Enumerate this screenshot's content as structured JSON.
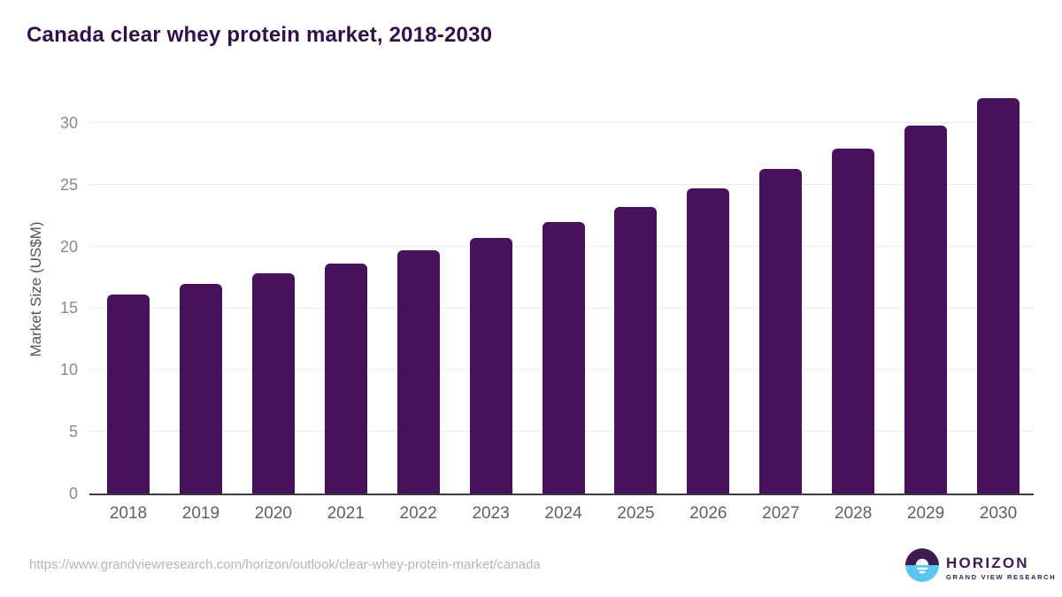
{
  "chart_data": {
    "type": "bar",
    "title": "Canada clear whey protein market, 2018-2030",
    "categories": [
      "2018",
      "2019",
      "2020",
      "2021",
      "2022",
      "2023",
      "2024",
      "2025",
      "2026",
      "2027",
      "2028",
      "2029",
      "2030"
    ],
    "values": [
      16.1,
      17.0,
      17.8,
      18.6,
      19.7,
      20.7,
      22.0,
      23.2,
      24.7,
      26.3,
      27.9,
      29.8,
      32.0
    ],
    "xlabel": "",
    "ylabel": "Market Size (US$M)",
    "yticks": [
      0,
      5,
      10,
      15,
      20,
      25,
      30
    ],
    "ylim": [
      0,
      33
    ],
    "grid": true,
    "legend": false,
    "bar_color": "#471259"
  },
  "footer": {
    "source_url": "https://www.grandviewresearch.com/horizon/outlook/clear-whey-protein-market/canada",
    "logo": {
      "name": "HORIZON",
      "subtitle": "GRAND VIEW RESEARCH"
    }
  },
  "colors": {
    "title": "#321047",
    "bar": "#471259",
    "axis": "#3a3a3a",
    "gridline": "#ececec",
    "y_tick": "#8a8a8a",
    "x_tick": "#606060",
    "url": "#b5b5b5",
    "logo_purple": "#3b1b52",
    "logo_blue": "#5bc6f2"
  }
}
